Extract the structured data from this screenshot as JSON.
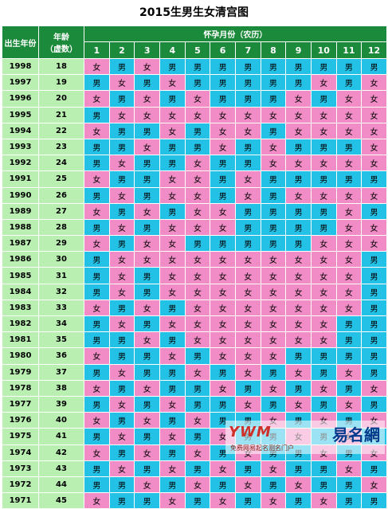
{
  "title": "2015生男生女清宫图",
  "header": {
    "birth_year": "出生年份",
    "age_line1": "年龄",
    "age_line2": "（虚数）",
    "months_title": "怀孕月份（农历）",
    "months": [
      "1",
      "2",
      "3",
      "4",
      "5",
      "6",
      "7",
      "8",
      "9",
      "10",
      "11",
      "12"
    ]
  },
  "colors": {
    "boy": "#23c1e6",
    "girl": "#f28cc6",
    "header": "#1b8a3a",
    "year_cell": "#b9f0b2"
  },
  "rows": [
    {
      "year": "1998",
      "age": "18",
      "cells": [
        "女",
        "男",
        "女",
        "男",
        "男",
        "男",
        "男",
        "男",
        "男",
        "男",
        "男",
        "男"
      ]
    },
    {
      "year": "1997",
      "age": "19",
      "cells": [
        "男",
        "女",
        "男",
        "女",
        "男",
        "男",
        "男",
        "男",
        "男",
        "女",
        "男",
        "女"
      ]
    },
    {
      "year": "1996",
      "age": "20",
      "cells": [
        "女",
        "男",
        "女",
        "男",
        "女",
        "男",
        "男",
        "男",
        "女",
        "男",
        "女",
        "女"
      ]
    },
    {
      "year": "1995",
      "age": "21",
      "cells": [
        "男",
        "女",
        "女",
        "女",
        "女",
        "女",
        "女",
        "女",
        "女",
        "女",
        "女",
        "女"
      ]
    },
    {
      "year": "1994",
      "age": "22",
      "cells": [
        "女",
        "男",
        "男",
        "女",
        "男",
        "女",
        "女",
        "男",
        "女",
        "女",
        "女",
        "女"
      ]
    },
    {
      "year": "1993",
      "age": "23",
      "cells": [
        "男",
        "男",
        "女",
        "男",
        "男",
        "女",
        "男",
        "女",
        "男",
        "男",
        "男",
        "女"
      ]
    },
    {
      "year": "1992",
      "age": "24",
      "cells": [
        "男",
        "女",
        "男",
        "男",
        "女",
        "男",
        "男",
        "女",
        "女",
        "女",
        "女",
        "女"
      ]
    },
    {
      "year": "1991",
      "age": "25",
      "cells": [
        "女",
        "男",
        "男",
        "女",
        "女",
        "男",
        "女",
        "男",
        "男",
        "男",
        "男",
        "男"
      ]
    },
    {
      "year": "1990",
      "age": "26",
      "cells": [
        "男",
        "女",
        "男",
        "女",
        "女",
        "男",
        "女",
        "男",
        "女",
        "女",
        "女",
        "女"
      ]
    },
    {
      "year": "1989",
      "age": "27",
      "cells": [
        "女",
        "男",
        "女",
        "男",
        "女",
        "女",
        "男",
        "男",
        "男",
        "男",
        "女",
        "男"
      ]
    },
    {
      "year": "1988",
      "age": "28",
      "cells": [
        "男",
        "女",
        "男",
        "女",
        "女",
        "女",
        "男",
        "男",
        "男",
        "男",
        "女",
        "女"
      ]
    },
    {
      "year": "1987",
      "age": "29",
      "cells": [
        "女",
        "男",
        "女",
        "女",
        "男",
        "男",
        "男",
        "男",
        "男",
        "女",
        "女",
        "女"
      ]
    },
    {
      "year": "1986",
      "age": "30",
      "cells": [
        "男",
        "女",
        "女",
        "女",
        "女",
        "女",
        "女",
        "女",
        "女",
        "女",
        "女",
        "男"
      ]
    },
    {
      "year": "1985",
      "age": "31",
      "cells": [
        "男",
        "女",
        "男",
        "女",
        "女",
        "女",
        "女",
        "女",
        "女",
        "女",
        "女",
        "男"
      ]
    },
    {
      "year": "1984",
      "age": "32",
      "cells": [
        "男",
        "女",
        "男",
        "女",
        "女",
        "女",
        "女",
        "女",
        "女",
        "女",
        "女",
        "男"
      ]
    },
    {
      "year": "1983",
      "age": "33",
      "cells": [
        "女",
        "男",
        "女",
        "男",
        "女",
        "女",
        "女",
        "女",
        "女",
        "女",
        "女",
        "男"
      ]
    },
    {
      "year": "1982",
      "age": "34",
      "cells": [
        "男",
        "女",
        "男",
        "女",
        "女",
        "女",
        "女",
        "女",
        "女",
        "女",
        "男",
        "男"
      ]
    },
    {
      "year": "1981",
      "age": "35",
      "cells": [
        "男",
        "男",
        "女",
        "男",
        "女",
        "女",
        "女",
        "女",
        "女",
        "女",
        "男",
        "男"
      ]
    },
    {
      "year": "1980",
      "age": "36",
      "cells": [
        "女",
        "男",
        "男",
        "女",
        "男",
        "女",
        "女",
        "女",
        "男",
        "男",
        "男",
        "男"
      ]
    },
    {
      "year": "1979",
      "age": "37",
      "cells": [
        "男",
        "女",
        "男",
        "男",
        "女",
        "男",
        "女",
        "男",
        "女",
        "男",
        "女",
        "男"
      ]
    },
    {
      "year": "1978",
      "age": "38",
      "cells": [
        "女",
        "男",
        "女",
        "男",
        "男",
        "女",
        "男",
        "女",
        "男",
        "女",
        "男",
        "女"
      ]
    },
    {
      "year": "1977",
      "age": "39",
      "cells": [
        "男",
        "女",
        "男",
        "女",
        "男",
        "男",
        "女",
        "男",
        "女",
        "男",
        "女",
        "男"
      ]
    },
    {
      "year": "1976",
      "age": "40",
      "cells": [
        "女",
        "男",
        "女",
        "男",
        "女",
        "男",
        "男",
        "女",
        "男",
        "女",
        "男",
        "女"
      ]
    },
    {
      "year": "1975",
      "age": "41",
      "cells": [
        "男",
        "女",
        "男",
        "女",
        "男",
        "女",
        "男",
        "男",
        "女",
        "男",
        "女",
        "男"
      ]
    },
    {
      "year": "1974",
      "age": "42",
      "cells": [
        "女",
        "男",
        "女",
        "男",
        "女",
        "男",
        "女",
        "男",
        "男",
        "女",
        "男",
        "女"
      ]
    },
    {
      "year": "1973",
      "age": "43",
      "cells": [
        "男",
        "女",
        "男",
        "女",
        "男",
        "女",
        "男",
        "女",
        "男",
        "男",
        "女",
        "男"
      ]
    },
    {
      "year": "1972",
      "age": "44",
      "cells": [
        "男",
        "男",
        "女",
        "男",
        "女",
        "男",
        "女",
        "男",
        "女",
        "男",
        "男",
        "女"
      ]
    },
    {
      "year": "1971",
      "age": "45",
      "cells": [
        "女",
        "男",
        "男",
        "女",
        "男",
        "女",
        "男",
        "女",
        "男",
        "女",
        "男",
        "男"
      ]
    }
  ],
  "watermark": {
    "brand": "易名網",
    "domain": ".com",
    "slogan": "免费网易起名测名门户"
  }
}
